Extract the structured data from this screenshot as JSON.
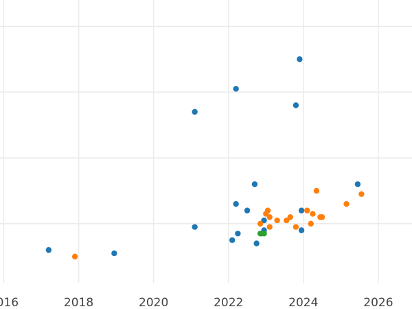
{
  "chart_data": {
    "type": "scatter",
    "title": "",
    "xlabel": "",
    "ylabel": "",
    "xlim": [
      2015.9,
      2026.9
    ],
    "ylim": [
      -1.8,
      6.8
    ],
    "x_ticks": [
      2016,
      2018,
      2020,
      2022,
      2024,
      2026
    ],
    "x_tick_labels": [
      "2016",
      "2018",
      "2020",
      "2022",
      "2024",
      "2026"
    ],
    "y_gridlines": [
      0,
      2,
      4,
      6
    ],
    "grid": true,
    "legend": "none",
    "series": [
      {
        "color": "#1f77b4",
        "points": [
          [
            2017.2,
            -0.8
          ],
          [
            2018.95,
            -0.9
          ],
          [
            2021.1,
            -0.1
          ],
          [
            2021.1,
            3.4
          ],
          [
            2022.1,
            -0.5
          ],
          [
            2022.2,
            4.1
          ],
          [
            2022.2,
            0.6
          ],
          [
            2022.25,
            -0.3
          ],
          [
            2022.5,
            0.4
          ],
          [
            2022.7,
            1.2
          ],
          [
            2022.75,
            -0.6
          ],
          [
            2022.9,
            -0.3
          ],
          [
            2022.95,
            0.1
          ],
          [
            2022.95,
            -0.2
          ],
          [
            2023.8,
            3.6
          ],
          [
            2023.9,
            5.0
          ],
          [
            2023.95,
            0.4
          ],
          [
            2023.95,
            -0.2
          ],
          [
            2025.45,
            1.2
          ]
        ]
      },
      {
        "color": "#ff7f0e",
        "points": [
          [
            2017.9,
            -1.0
          ],
          [
            2022.85,
            0.0
          ],
          [
            2023.0,
            0.3
          ],
          [
            2023.05,
            0.4
          ],
          [
            2023.1,
            0.2
          ],
          [
            2023.1,
            -0.1
          ],
          [
            2023.3,
            0.1
          ],
          [
            2023.55,
            0.1
          ],
          [
            2023.65,
            0.2
          ],
          [
            2023.8,
            -0.1
          ],
          [
            2024.1,
            0.4
          ],
          [
            2024.2,
            0.0
          ],
          [
            2024.25,
            0.3
          ],
          [
            2024.35,
            1.0
          ],
          [
            2024.45,
            0.2
          ],
          [
            2024.5,
            0.2
          ],
          [
            2025.15,
            0.6
          ],
          [
            2025.55,
            0.9
          ]
        ]
      },
      {
        "color": "#2ca02c",
        "points": [
          [
            2022.85,
            -0.3
          ],
          [
            2022.95,
            -0.3
          ]
        ]
      }
    ]
  }
}
